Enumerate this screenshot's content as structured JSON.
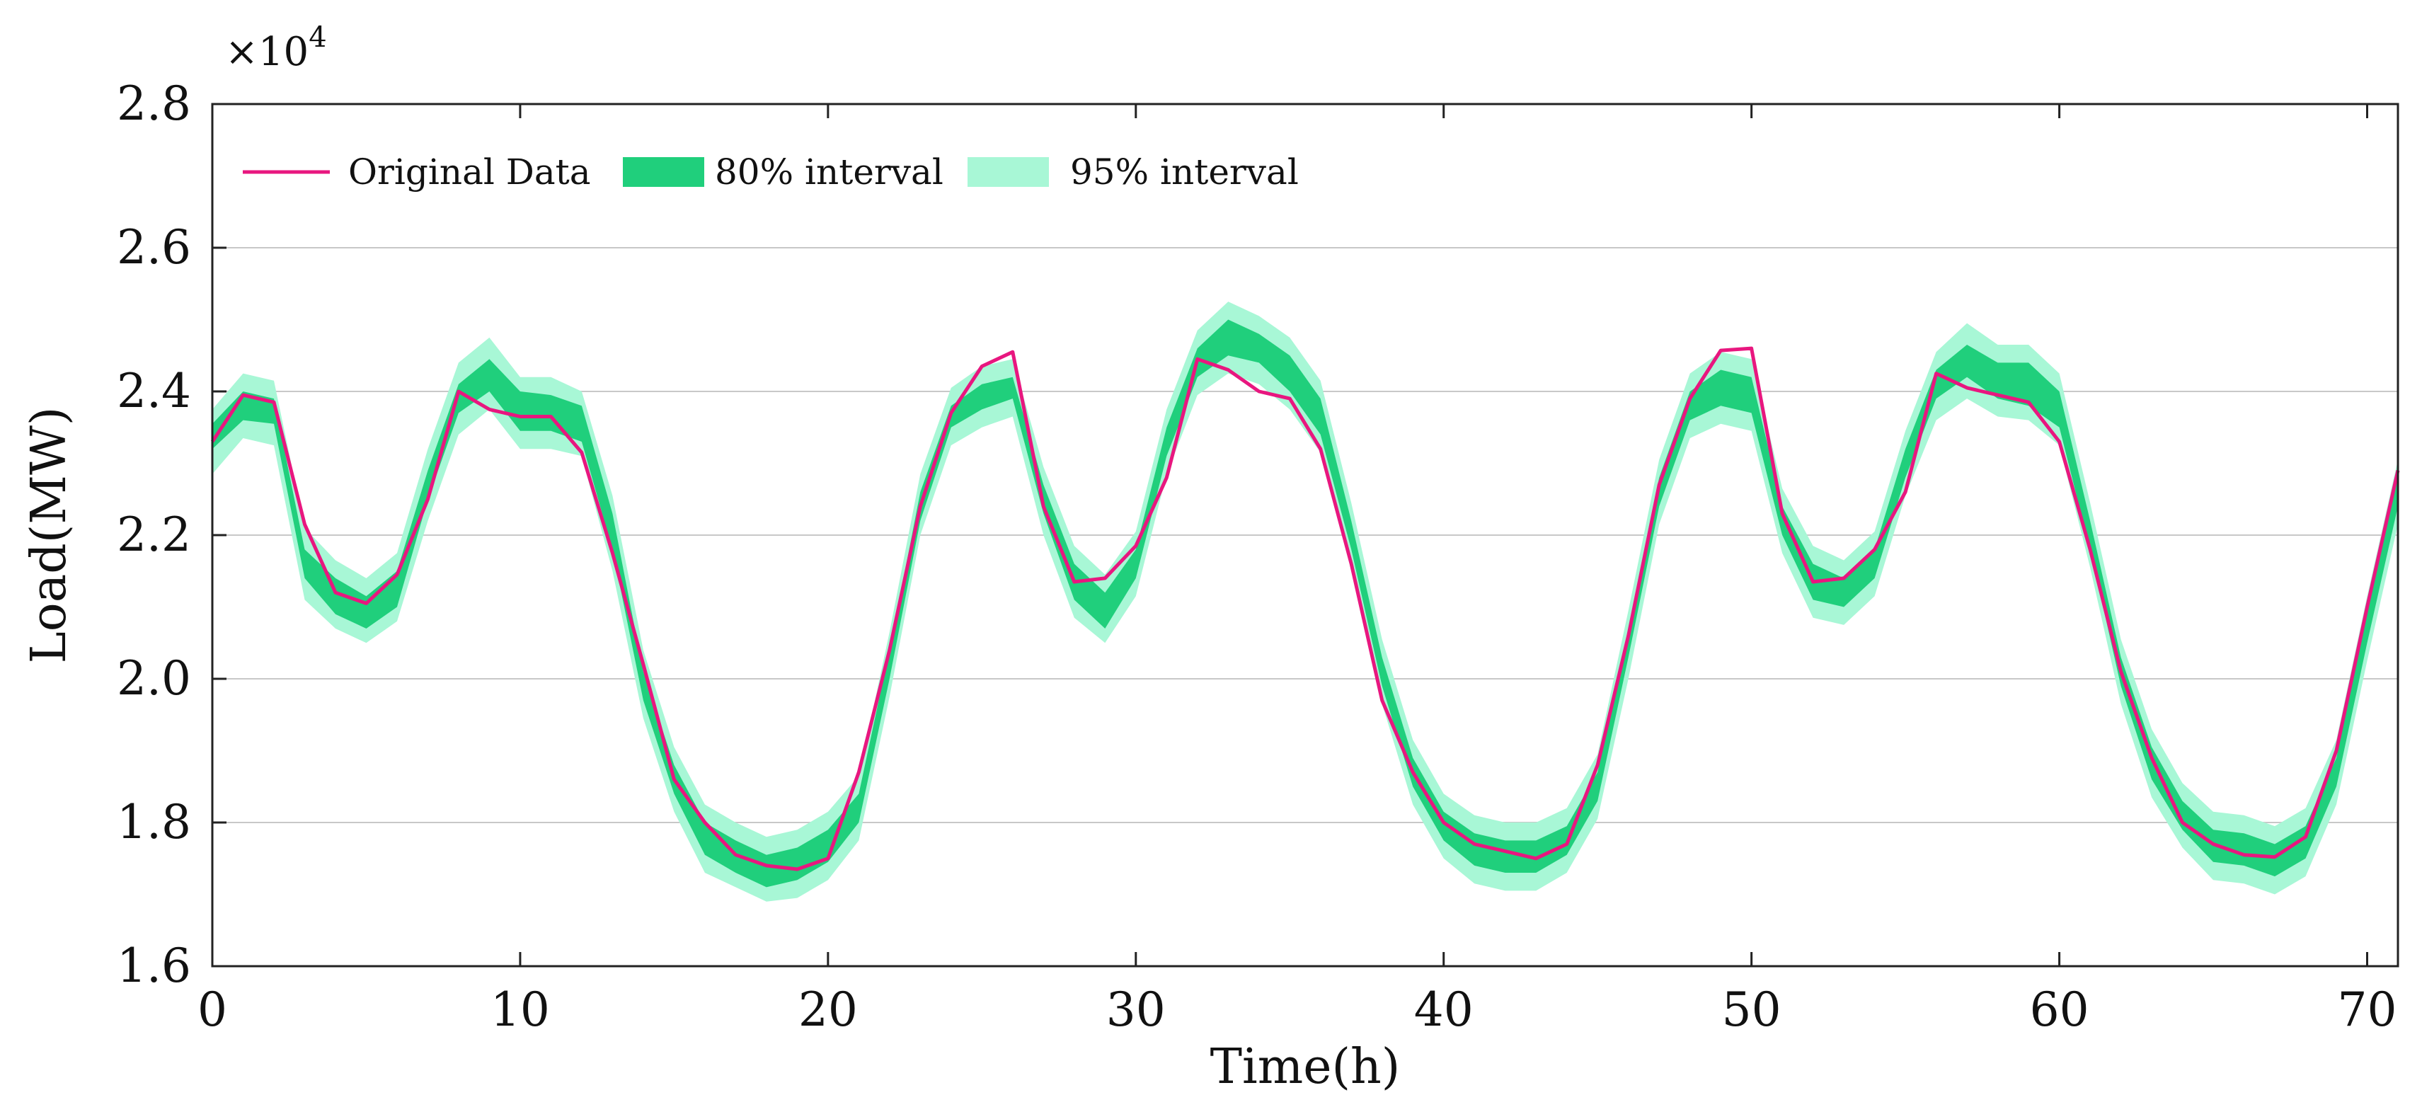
{
  "chart_data": {
    "type": "line",
    "title": "",
    "xlabel": "Time(h)",
    "ylabel": "Load(MW)",
    "y_scale_label": "×10",
    "y_scale_exponent": "4",
    "xlim": [
      0,
      71
    ],
    "ylim": [
      1.6,
      2.8
    ],
    "xticks": [
      0,
      10,
      20,
      30,
      40,
      50,
      60,
      70
    ],
    "xtick_labels": [
      "0",
      "10",
      "20",
      "30",
      "40",
      "50",
      "60",
      "70"
    ],
    "yticks": [
      1.6,
      1.8,
      2.0,
      2.2,
      2.4,
      2.6,
      2.8
    ],
    "ytick_labels": [
      "1.6",
      "1.8",
      "2.0",
      "2.2",
      "2.4",
      "2.6",
      "2.8"
    ],
    "grid": "horizontal",
    "legend_position": "top-left",
    "legend": {
      "original": "Original Data",
      "band80": "80% interval",
      "band95": "95% interval"
    },
    "colors": {
      "original": "#e8177f",
      "band80": "#20cf7c",
      "band95": "#a8f7d6"
    },
    "x": [
      0,
      1,
      2,
      3,
      4,
      5,
      6,
      7,
      8,
      9,
      10,
      11,
      12,
      13,
      14,
      15,
      16,
      17,
      18,
      19,
      20,
      21,
      22,
      23,
      24,
      25,
      26,
      27,
      28,
      29,
      30,
      31,
      32,
      33,
      34,
      35,
      36,
      37,
      38,
      39,
      40,
      41,
      42,
      43,
      44,
      45,
      46,
      47,
      48,
      49,
      50,
      51,
      52,
      53,
      54,
      55,
      56,
      57,
      58,
      59,
      60,
      61,
      62,
      63,
      64,
      65,
      66,
      67,
      68,
      69,
      70,
      71
    ],
    "series": [
      {
        "name": "Original Data",
        "values": [
          2.33,
          2.395,
          2.385,
          2.215,
          2.12,
          2.105,
          2.145,
          2.25,
          2.4,
          2.375,
          2.365,
          2.365,
          2.315,
          2.175,
          2.02,
          1.86,
          1.8,
          1.755,
          1.74,
          1.735,
          1.75,
          1.87,
          2.04,
          2.24,
          2.37,
          2.435,
          2.455,
          2.24,
          2.135,
          2.14,
          2.185,
          2.28,
          2.445,
          2.43,
          2.4,
          2.39,
          2.32,
          2.16,
          1.97,
          1.87,
          1.8,
          1.77,
          1.76,
          1.75,
          1.77,
          1.88,
          2.06,
          2.27,
          2.39,
          2.457,
          2.46,
          2.23,
          2.135,
          2.14,
          2.18,
          2.26,
          2.425,
          2.405,
          2.395,
          2.385,
          2.33,
          2.18,
          2.01,
          1.89,
          1.8,
          1.77,
          1.755,
          1.752,
          1.78,
          1.9,
          2.1,
          2.29
        ]
      },
      {
        "name": "80% interval lower",
        "values": [
          2.32,
          2.36,
          2.355,
          2.14,
          2.09,
          2.07,
          2.1,
          2.25,
          2.37,
          2.4,
          2.345,
          2.345,
          2.33,
          2.18,
          1.97,
          1.84,
          1.755,
          1.73,
          1.71,
          1.72,
          1.745,
          1.8,
          2.0,
          2.22,
          2.35,
          2.375,
          2.39,
          2.23,
          2.11,
          2.07,
          2.14,
          2.31,
          2.42,
          2.45,
          2.44,
          2.4,
          2.34,
          2.18,
          1.99,
          1.85,
          1.775,
          1.74,
          1.73,
          1.73,
          1.755,
          1.83,
          2.03,
          2.24,
          2.36,
          2.38,
          2.37,
          2.2,
          2.11,
          2.1,
          2.14,
          2.28,
          2.39,
          2.42,
          2.39,
          2.38,
          2.35,
          2.18,
          1.99,
          1.86,
          1.79,
          1.745,
          1.74,
          1.725,
          1.75,
          1.85,
          2.05,
          2.24
        ]
      },
      {
        "name": "80% interval upper",
        "values": [
          2.355,
          2.4,
          2.39,
          2.18,
          2.14,
          2.115,
          2.15,
          2.29,
          2.41,
          2.445,
          2.4,
          2.395,
          2.38,
          2.23,
          2.01,
          1.88,
          1.8,
          1.775,
          1.755,
          1.765,
          1.79,
          1.84,
          2.04,
          2.26,
          2.38,
          2.41,
          2.42,
          2.27,
          2.16,
          2.12,
          2.18,
          2.35,
          2.46,
          2.5,
          2.48,
          2.45,
          2.39,
          2.22,
          2.03,
          1.89,
          1.815,
          1.785,
          1.775,
          1.775,
          1.795,
          1.87,
          2.07,
          2.28,
          2.4,
          2.43,
          2.42,
          2.24,
          2.16,
          2.14,
          2.18,
          2.32,
          2.43,
          2.465,
          2.44,
          2.44,
          2.4,
          2.22,
          2.03,
          1.905,
          1.83,
          1.79,
          1.785,
          1.77,
          1.795,
          1.89,
          2.09,
          2.28
        ]
      },
      {
        "name": "95% interval lower",
        "values": [
          2.285,
          2.335,
          2.325,
          2.11,
          2.07,
          2.05,
          2.08,
          2.22,
          2.34,
          2.375,
          2.32,
          2.32,
          2.31,
          2.15,
          1.945,
          1.815,
          1.73,
          1.71,
          1.69,
          1.695,
          1.72,
          1.775,
          1.975,
          2.2,
          2.325,
          2.35,
          2.365,
          2.2,
          2.085,
          2.05,
          2.115,
          2.285,
          2.395,
          2.425,
          2.41,
          2.375,
          2.315,
          2.155,
          1.965,
          1.825,
          1.75,
          1.715,
          1.705,
          1.705,
          1.73,
          1.805,
          2.0,
          2.215,
          2.335,
          2.355,
          2.345,
          2.175,
          2.085,
          2.075,
          2.115,
          2.255,
          2.36,
          2.39,
          2.365,
          2.36,
          2.325,
          2.155,
          1.965,
          1.835,
          1.765,
          1.72,
          1.715,
          1.7,
          1.725,
          1.825,
          2.025,
          2.215
        ]
      },
      {
        "name": "95% interval upper",
        "values": [
          2.375,
          2.425,
          2.415,
          2.21,
          2.165,
          2.14,
          2.175,
          2.32,
          2.44,
          2.475,
          2.42,
          2.42,
          2.4,
          2.255,
          2.04,
          1.905,
          1.825,
          1.8,
          1.78,
          1.79,
          1.815,
          1.865,
          2.065,
          2.285,
          2.405,
          2.435,
          2.445,
          2.295,
          2.185,
          2.145,
          2.205,
          2.375,
          2.485,
          2.525,
          2.505,
          2.475,
          2.415,
          2.245,
          2.055,
          1.915,
          1.84,
          1.81,
          1.8,
          1.8,
          1.82,
          1.895,
          2.095,
          2.305,
          2.425,
          2.455,
          2.445,
          2.265,
          2.185,
          2.165,
          2.205,
          2.345,
          2.455,
          2.495,
          2.465,
          2.465,
          2.425,
          2.245,
          2.055,
          1.93,
          1.855,
          1.815,
          1.81,
          1.795,
          1.82,
          1.915,
          2.115,
          2.305
        ]
      }
    ]
  }
}
